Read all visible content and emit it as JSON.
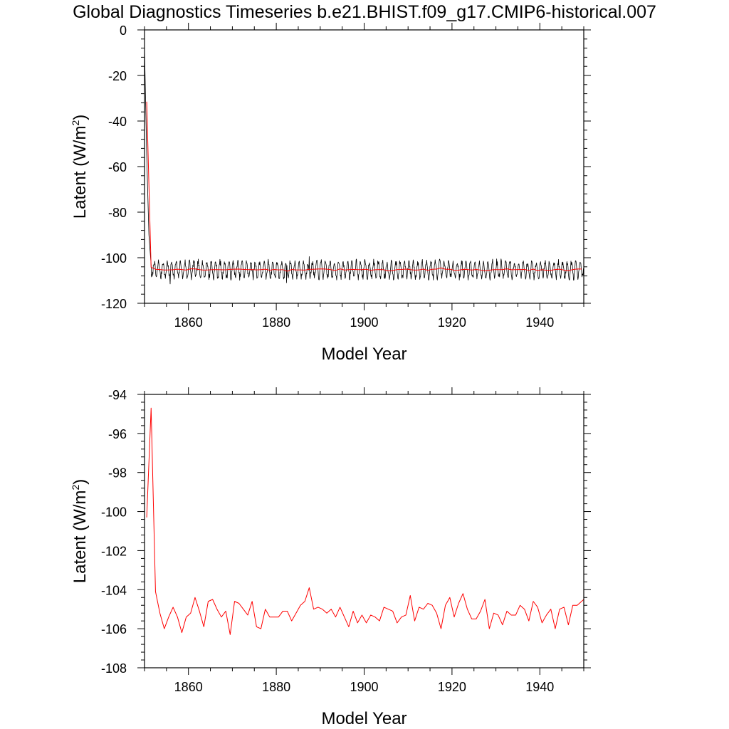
{
  "title": "Global Diagnostics Timeseries b.e21.BHIST.f09_g17.CMIP6-historical.007",
  "chart_data": [
    {
      "type": "line",
      "xlabel": "Model Year",
      "ylabel": "Latent (W/m",
      "ylabel_sup": "2",
      "ylabel_close": ")",
      "xlim": [
        1850,
        1950
      ],
      "ylim": [
        -120,
        0
      ],
      "xticks": [
        1860,
        1880,
        1900,
        1920,
        1940
      ],
      "yticks": [
        0,
        -20,
        -40,
        -60,
        -80,
        -100,
        -120
      ],
      "grid": false,
      "series": [
        {
          "color": "#000000",
          "kind": "monthly",
          "start_year": 1850,
          "x_last": 1950,
          "spinup": [
            [
              1850.0,
              -8.0
            ],
            [
              1850.5,
              -55.0
            ],
            [
              1851.0,
              -90.0
            ],
            [
              1851.5,
              -103.0
            ]
          ],
          "mean": -105.2,
          "amplitude": 3.4,
          "spikes": [
            [
              1887.5,
              -99.5
            ],
            [
              1855.8,
              -111.5
            ],
            [
              1882.3,
              -111.0
            ]
          ]
        },
        {
          "color": "#ff0000",
          "kind": "annual"
        }
      ]
    },
    {
      "type": "line",
      "xlabel": "Model Year",
      "ylabel": "Latent (W/m",
      "ylabel_sup": "2",
      "ylabel_close": ")",
      "xlim": [
        1850,
        1950
      ],
      "ylim": [
        -108,
        -94
      ],
      "xticks": [
        1860,
        1880,
        1900,
        1920,
        1940
      ],
      "yticks": [
        -94,
        -96,
        -98,
        -100,
        -102,
        -104,
        -106,
        -108
      ],
      "grid": false,
      "series": [
        {
          "color": "#ff0000",
          "x": [
            1850.5,
            1851.5,
            1852.5,
            1853.5,
            1854.5,
            1855.5,
            1856.5,
            1857.5,
            1858.5,
            1859.5,
            1860.5,
            1861.5,
            1862.5,
            1863.5,
            1864.5,
            1865.5,
            1866.5,
            1867.5,
            1868.5,
            1869.5,
            1870.5,
            1871.5,
            1872.5,
            1873.5,
            1874.5,
            1875.5,
            1876.5,
            1877.5,
            1878.5,
            1879.5,
            1880.5,
            1881.5,
            1882.5,
            1883.5,
            1884.5,
            1885.5,
            1886.5,
            1887.5,
            1888.5,
            1889.5,
            1890.5,
            1891.5,
            1892.5,
            1893.5,
            1894.5,
            1895.5,
            1896.5,
            1897.5,
            1898.5,
            1899.5,
            1900.5,
            1901.5,
            1902.5,
            1903.5,
            1904.5,
            1905.5,
            1906.5,
            1907.5,
            1908.5,
            1909.5,
            1910.5,
            1911.5,
            1912.5,
            1913.5,
            1914.5,
            1915.5,
            1916.5,
            1917.5,
            1918.5,
            1919.5,
            1920.5,
            1921.5,
            1922.5,
            1923.5,
            1924.5,
            1925.5,
            1926.5,
            1927.5,
            1928.5,
            1929.5,
            1930.5,
            1931.5,
            1932.5,
            1933.5,
            1934.5,
            1935.5,
            1936.5,
            1937.5,
            1938.5,
            1939.5,
            1940.5,
            1941.5,
            1942.5,
            1943.5,
            1944.5,
            1945.5,
            1946.5,
            1947.5,
            1948.5,
            1949.5,
            1950.0
          ],
          "values": [
            -100.3,
            -94.7,
            -104.1,
            -105.2,
            -106.0,
            -105.4,
            -104.9,
            -105.4,
            -106.2,
            -105.4,
            -105.2,
            -104.4,
            -105.1,
            -105.9,
            -104.6,
            -104.5,
            -105.0,
            -105.4,
            -105.1,
            -106.3,
            -104.6,
            -104.7,
            -105.0,
            -105.3,
            -104.6,
            -105.9,
            -106.0,
            -105.0,
            -105.4,
            -105.4,
            -105.4,
            -105.1,
            -105.1,
            -105.6,
            -105.2,
            -104.8,
            -104.6,
            -103.9,
            -105.0,
            -104.9,
            -105.0,
            -105.2,
            -105.0,
            -105.4,
            -104.9,
            -105.4,
            -105.9,
            -105.1,
            -105.7,
            -105.3,
            -105.7,
            -105.3,
            -105.4,
            -105.6,
            -104.9,
            -105.0,
            -105.1,
            -105.7,
            -105.4,
            -105.3,
            -104.3,
            -105.6,
            -104.9,
            -105.0,
            -104.7,
            -104.8,
            -105.2,
            -106.0,
            -104.8,
            -104.4,
            -105.4,
            -104.7,
            -104.2,
            -105.0,
            -105.5,
            -105.5,
            -105.1,
            -104.5,
            -106.0,
            -105.2,
            -105.3,
            -105.8,
            -105.1,
            -105.3,
            -105.3,
            -104.8,
            -105.0,
            -105.6,
            -104.6,
            -104.9,
            -105.7,
            -105.3,
            -105.0,
            -106.0,
            -105.0,
            -104.9,
            -105.8,
            -104.8,
            -104.8,
            -104.6,
            -104.5
          ]
        }
      ]
    }
  ]
}
